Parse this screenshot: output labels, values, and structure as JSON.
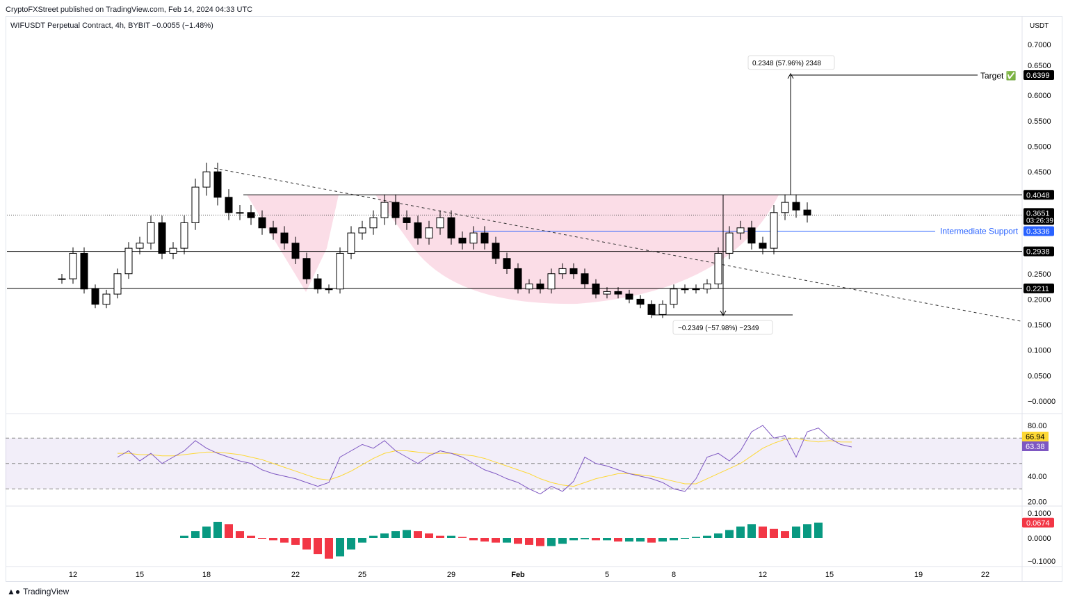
{
  "header": {
    "published": "CryptoFXStreet published on TradingView.com, Feb 14, 2024 04:33 UTC",
    "symbol": "WIFUSDT Perpetual Contract, 4h, BYBIT  −0.0055 (−1.48%)"
  },
  "footer": {
    "logo": "TradingView"
  },
  "annotations": {
    "target": "Target ✅",
    "support": "Intermediate Support",
    "measure_up": "0.2348 (57.96%) 2348",
    "measure_down": "−0.2349 (−57.98%) −2349"
  },
  "chart_data": {
    "type": "candlestick",
    "currency": "USDT",
    "price_ticks": [
      "0.7000",
      "0.6500",
      "0.6000",
      "0.5500",
      "0.5000",
      "0.4500",
      "0.2500",
      "0.2000",
      "0.1500",
      "0.1000",
      "0.0500",
      "−0.0000"
    ],
    "price_labels": [
      {
        "value": 0.6399,
        "text": "0.6399",
        "color": "#000000"
      },
      {
        "value": 0.4048,
        "text": "0.4048",
        "color": "#000000"
      },
      {
        "value": 0.3651,
        "text": "0.3651",
        "sub": "03:26:39",
        "color": "#000000"
      },
      {
        "value": 0.3336,
        "text": "0.3336",
        "color": "#2962ff"
      },
      {
        "value": 0.2938,
        "text": "0.2938",
        "color": "#000000"
      },
      {
        "value": 0.2211,
        "text": "0.2211",
        "color": "#000000"
      }
    ],
    "levels": [
      0.4048,
      0.2938,
      0.2211
    ],
    "support_level": 0.3336,
    "x_ticks": [
      "12",
      "15",
      "18",
      "22",
      "25",
      "29",
      "Feb",
      "5",
      "8",
      "12",
      "15",
      "19",
      "22"
    ],
    "x_tick_days": [
      0,
      3,
      6,
      10,
      13,
      17,
      20,
      24,
      27,
      31,
      34,
      38,
      41
    ],
    "closes_half_day_from_jan11_12h": [
      0.24,
      0.29,
      0.22,
      0.19,
      0.21,
      0.25,
      0.3,
      0.31,
      0.35,
      0.29,
      0.3,
      0.35,
      0.42,
      0.45,
      0.4,
      0.37,
      0.37,
      0.36,
      0.34,
      0.33,
      0.31,
      0.28,
      0.24,
      0.22,
      0.22,
      0.29,
      0.33,
      0.34,
      0.36,
      0.39,
      0.36,
      0.35,
      0.32,
      0.34,
      0.36,
      0.32,
      0.31,
      0.33,
      0.31,
      0.28,
      0.26,
      0.22,
      0.23,
      0.22,
      0.25,
      0.26,
      0.25,
      0.23,
      0.21,
      0.215,
      0.21,
      0.2,
      0.19,
      0.17,
      0.19,
      0.22,
      0.22,
      0.22,
      0.23,
      0.29,
      0.33,
      0.34,
      0.31,
      0.3,
      0.37,
      0.39,
      0.375,
      0.365
    ],
    "rsi": {
      "ticks": [
        "80.00",
        "40.00",
        "20.00"
      ],
      "value": "63.38",
      "ma_value": "66.94",
      "bands": [
        70,
        50,
        30
      ],
      "values_from_jan14": [
        55,
        60,
        52,
        58,
        50,
        55,
        60,
        68,
        62,
        58,
        55,
        52,
        50,
        45,
        42,
        40,
        38,
        35,
        32,
        35,
        55,
        60,
        65,
        62,
        68,
        60,
        55,
        50,
        56,
        60,
        58,
        55,
        50,
        45,
        42,
        38,
        35,
        30,
        26,
        32,
        28,
        36,
        55,
        50,
        48,
        45,
        42,
        40,
        38,
        35,
        30,
        28,
        38,
        55,
        58,
        52,
        60,
        75,
        80,
        70,
        72,
        55,
        75,
        78,
        70,
        65,
        63
      ],
      "ma_from_jan14": [
        58,
        58,
        57,
        57,
        56,
        56,
        57,
        58,
        59,
        59,
        58,
        57,
        55,
        53,
        50,
        47,
        44,
        41,
        38,
        37,
        40,
        44,
        49,
        54,
        58,
        60,
        60,
        59,
        58,
        58,
        58,
        57,
        56,
        54,
        51,
        48,
        45,
        42,
        38,
        35,
        33,
        32,
        35,
        38,
        40,
        42,
        42,
        41,
        40,
        38,
        36,
        34,
        34,
        38,
        42,
        46,
        50,
        56,
        62,
        66,
        69,
        70,
        68,
        67,
        68,
        67,
        66.94
      ]
    },
    "ao": {
      "ticks": [
        "0.1000",
        "0.0000",
        "−0.1000"
      ],
      "value": "0.0674",
      "values_from_jan17": [
        0.01,
        0.03,
        0.05,
        0.07,
        0.06,
        0.03,
        0.01,
        0,
        -0.01,
        -0.02,
        -0.03,
        -0.05,
        -0.07,
        -0.09,
        -0.08,
        -0.05,
        -0.02,
        0.01,
        0.02,
        0.03,
        0.035,
        0.03,
        0.02,
        0.01,
        0.01,
        0.005,
        -0.01,
        -0.015,
        -0.02,
        -0.02,
        -0.025,
        -0.03,
        -0.035,
        -0.035,
        -0.025,
        -0.01,
        -0.005,
        -0.01,
        -0.01,
        -0.015,
        -0.015,
        -0.015,
        -0.02,
        -0.015,
        -0.01,
        0,
        0.005,
        0.01,
        0.02,
        0.035,
        0.05,
        0.06,
        0.05,
        0.04,
        0.03,
        0.05,
        0.06,
        0.0674
      ]
    }
  },
  "colors": {
    "up": "#089981",
    "down": "#f23645",
    "cup": "#f8bbd0",
    "support": "#2962ff",
    "rsi": "#7e57c2",
    "rsi_ma": "#fdd835"
  }
}
